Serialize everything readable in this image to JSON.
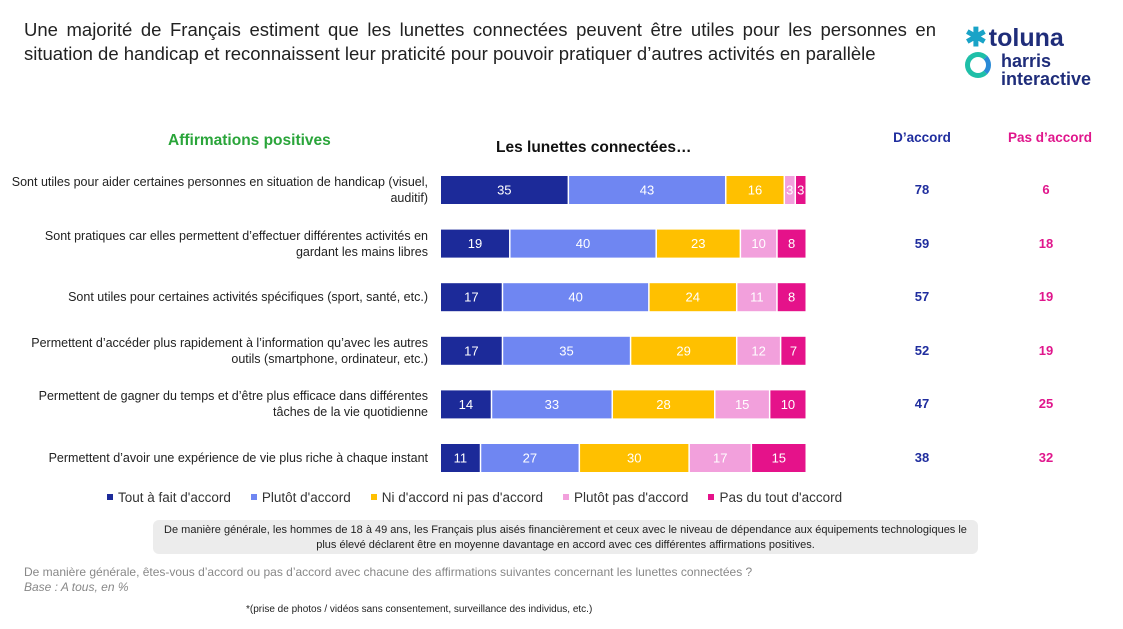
{
  "title": "Une majorité de Français estiment que les lunettes connectées peuvent être utiles pour les personnes en situation de handicap et reconnaissent leur praticité pour pouvoir pratiquer d’autres activités en parallèle",
  "logo": {
    "brand1": "toluna",
    "brand2_line1": "harris",
    "brand2_line2": "interactive"
  },
  "section_label": "Affirmations positives",
  "header_agree": "D’accord",
  "header_disagree": "Pas d’accord",
  "colors": {
    "section": "#2aa53a",
    "agree_header": "#1f2d9e",
    "disagree_header": "#e0168c"
  },
  "chart_data": {
    "type": "bar",
    "orientation": "horizontal-stacked-100",
    "title": "Les lunettes connectées…",
    "categories": [
      "Sont utiles pour aider certaines personnes en situation de handicap (visuel, auditif)",
      "Sont pratiques car elles permettent d’effectuer différentes activités en gardant les mains libres",
      "Sont utiles pour certaines activités spécifiques (sport, santé, etc.)",
      "Permettent d’accéder plus rapidement à l’information qu’avec les autres outils (smartphone, ordinateur, etc.)",
      "Permettent de gagner du temps et d’être plus efficace dans différentes tâches de la vie quotidienne",
      "Permettent d’avoir une expérience de vie plus riche à chaque instant"
    ],
    "series": [
      {
        "name": "Tout à fait d'accord",
        "color": "#1c2a99",
        "values": [
          35,
          19,
          17,
          17,
          14,
          11
        ]
      },
      {
        "name": "Plutôt d'accord",
        "color": "#6f86f2",
        "values": [
          43,
          40,
          40,
          35,
          33,
          27
        ]
      },
      {
        "name": "Ni d'accord ni pas d'accord",
        "color": "#ffc000",
        "values": [
          16,
          23,
          24,
          29,
          28,
          30
        ]
      },
      {
        "name": "Plutôt pas d'accord",
        "color": "#f2a0dc",
        "values": [
          3,
          10,
          11,
          12,
          15,
          17
        ]
      },
      {
        "name": "Pas du tout d'accord",
        "color": "#e5128a",
        "values": [
          3,
          8,
          8,
          7,
          10,
          15
        ]
      }
    ],
    "agree_totals": [
      78,
      59,
      57,
      52,
      47,
      38
    ],
    "disagree_totals": [
      6,
      18,
      19,
      19,
      25,
      32
    ],
    "legend_position": "bottom"
  },
  "note": "De manière générale, les hommes de 18 à 49 ans, les Français plus aisés financièrement et ceux avec le niveau de dépendance aux équipements technologiques le plus élevé déclarent être en moyenne davantage en accord avec ces différentes affirmations positives.",
  "question": "De manière générale, êtes-vous d’accord ou pas d’accord avec chacune des affirmations suivantes concernant les lunettes connectées ?",
  "base": "Base : A tous, en %",
  "footnote": "*(prise de photos / vidéos sans consentement, surveillance des individus, etc.)"
}
